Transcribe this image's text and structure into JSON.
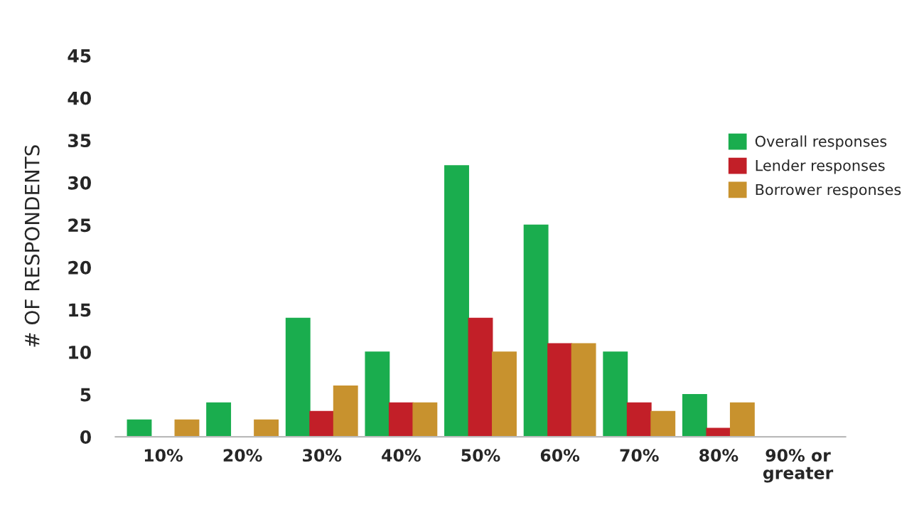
{
  "chart_data": {
    "type": "bar",
    "ylabel": "# OF RESPONDENTS",
    "categories": [
      "10%",
      "20%",
      "30%",
      "40%",
      "50%",
      "60%",
      "70%",
      "80%",
      "90% or\ngreater"
    ],
    "series": [
      {
        "name": "Overall responses",
        "color": "#1aad4e",
        "values": [
          2,
          4,
          14,
          10,
          32,
          25,
          10,
          5,
          0
        ]
      },
      {
        "name": "Lender responses",
        "color": "#c21f28",
        "values": [
          0,
          0,
          3,
          4,
          14,
          11,
          4,
          1,
          0
        ]
      },
      {
        "name": "Borrower responses",
        "color": "#c8922e",
        "values": [
          2,
          2,
          6,
          4,
          10,
          11,
          3,
          4,
          0
        ]
      }
    ],
    "ylim": [
      0,
      45
    ],
    "yticks": [
      0,
      5,
      10,
      15,
      20,
      25,
      30,
      35,
      40,
      45
    ],
    "grid": false,
    "legend": "top right"
  }
}
